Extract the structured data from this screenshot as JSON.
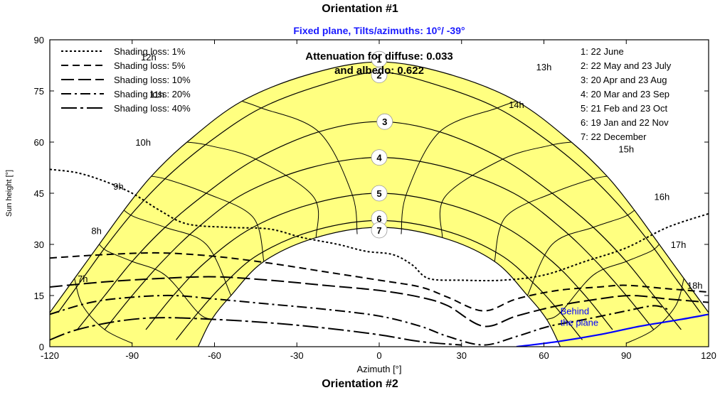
{
  "header": {
    "title": "Orientation #1"
  },
  "footer": {
    "title": "Orientation #2"
  },
  "chart_data": {
    "type": "line",
    "title": "Fixed plane, Tilts/azimuths: 10°/ -39°",
    "xlabel": "Azimuth [°]",
    "ylabel": "Sun height [°]",
    "xlim": [
      -120,
      120
    ],
    "ylim": [
      0,
      90
    ],
    "x_ticks": [
      "-120",
      "-90",
      "-60",
      "-30",
      "0",
      "30",
      "60",
      "90",
      "120"
    ],
    "y_ticks": [
      "0",
      "15",
      "30",
      "45",
      "60",
      "75",
      "90"
    ],
    "annotation": {
      "line1": "Attenuation for diffuse: 0.033",
      "line2": "and albedo: 0.622"
    },
    "behind_plane_label": "Behind\nthe plane",
    "colors": {
      "sun_band": "#ffff80",
      "behind_plane": "#0000ff",
      "title": "#1a1aff"
    },
    "shading_legend": [
      {
        "label": "Shading loss: 1%",
        "dash": "3,3"
      },
      {
        "label": "Shading loss: 5%",
        "dash": "10,6"
      },
      {
        "label": "Shading loss: 10%",
        "dash": "18,6"
      },
      {
        "label": "Shading loss: 20%",
        "dash": "14,5,3,5"
      },
      {
        "label": "Shading loss: 40%",
        "dash": "22,5,4,5"
      }
    ],
    "date_legend": [
      "1: 22 June",
      "2: 22 May and 23 July",
      "3: 20 Apr and 23 Aug",
      "4: 20 Mar and 23 Sep",
      "5: 21 Feb and 23 Oct",
      "6: 19 Jan and 22 Nov",
      "7: 22 December"
    ],
    "sun_paths": [
      {
        "id": "1",
        "points": [
          [
            -120,
            10
          ],
          [
            -111,
            20
          ],
          [
            -102,
            30
          ],
          [
            -93,
            40
          ],
          [
            -83,
            50
          ],
          [
            -70,
            60
          ],
          [
            -50,
            72
          ],
          [
            -25,
            80
          ],
          [
            0,
            83.5
          ],
          [
            25,
            80
          ],
          [
            50,
            72
          ],
          [
            70,
            60
          ],
          [
            83,
            50
          ],
          [
            93,
            40
          ],
          [
            102,
            30
          ],
          [
            111,
            20
          ],
          [
            120,
            10
          ]
        ]
      },
      {
        "id": "2",
        "points": [
          [
            -117,
            10
          ],
          [
            -108,
            20
          ],
          [
            -99,
            30
          ],
          [
            -89,
            40
          ],
          [
            -77,
            50
          ],
          [
            -62,
            60
          ],
          [
            -43,
            70
          ],
          [
            -20,
            77
          ],
          [
            0,
            80.5
          ],
          [
            20,
            77
          ],
          [
            43,
            70
          ],
          [
            62,
            60
          ],
          [
            77,
            50
          ],
          [
            89,
            40
          ],
          [
            99,
            30
          ],
          [
            108,
            20
          ],
          [
            117,
            10
          ]
        ]
      },
      {
        "id": "3",
        "points": [
          [
            -110,
            5
          ],
          [
            -100,
            15
          ],
          [
            -90,
            25
          ],
          [
            -78,
            35
          ],
          [
            -63,
            45
          ],
          [
            -45,
            55
          ],
          [
            -22,
            63
          ],
          [
            0,
            66
          ],
          [
            22,
            63
          ],
          [
            45,
            55
          ],
          [
            63,
            45
          ],
          [
            78,
            35
          ],
          [
            90,
            25
          ],
          [
            100,
            15
          ],
          [
            110,
            5
          ]
        ]
      },
      {
        "id": "4",
        "points": [
          [
            -100,
            5
          ],
          [
            -90,
            15
          ],
          [
            -79,
            25
          ],
          [
            -66,
            35
          ],
          [
            -49,
            45
          ],
          [
            -25,
            52.5
          ],
          [
            0,
            55.5
          ],
          [
            25,
            52.5
          ],
          [
            49,
            45
          ],
          [
            66,
            35
          ],
          [
            79,
            25
          ],
          [
            90,
            15
          ],
          [
            100,
            5
          ]
        ]
      },
      {
        "id": "5",
        "points": [
          [
            -85,
            5
          ],
          [
            -75,
            15
          ],
          [
            -63,
            25
          ],
          [
            -46,
            35
          ],
          [
            -24,
            42
          ],
          [
            0,
            45
          ],
          [
            24,
            42
          ],
          [
            46,
            35
          ],
          [
            63,
            25
          ],
          [
            75,
            15
          ],
          [
            85,
            5
          ]
        ]
      },
      {
        "id": "6",
        "points": [
          [
            -74,
            2
          ],
          [
            -66,
            10
          ],
          [
            -57,
            18
          ],
          [
            -44,
            27
          ],
          [
            -24,
            34
          ],
          [
            0,
            37
          ],
          [
            24,
            34
          ],
          [
            44,
            27
          ],
          [
            57,
            18
          ],
          [
            66,
            10
          ],
          [
            74,
            2
          ]
        ]
      },
      {
        "id": "7",
        "points": [
          [
            -66,
            0
          ],
          [
            -61,
            8
          ],
          [
            -54,
            15
          ],
          [
            -42,
            25
          ],
          [
            -23,
            32
          ],
          [
            0,
            35
          ],
          [
            23,
            32
          ],
          [
            42,
            25
          ],
          [
            54,
            15
          ],
          [
            61,
            8
          ],
          [
            66,
            0
          ]
        ]
      }
    ],
    "hour_labels": [
      {
        "label": "7h",
        "x": -108,
        "y": 19
      },
      {
        "label": "8h",
        "x": -103,
        "y": 33
      },
      {
        "label": "9h",
        "x": -95,
        "y": 46
      },
      {
        "label": "10h",
        "x": -86,
        "y": 59
      },
      {
        "label": "11h",
        "x": -81,
        "y": 73
      },
      {
        "label": "12h",
        "x": -84,
        "y": 84
      },
      {
        "label": "13h",
        "x": 60,
        "y": 81
      },
      {
        "label": "14h",
        "x": 50,
        "y": 70
      },
      {
        "label": "15h",
        "x": 90,
        "y": 57
      },
      {
        "label": "16h",
        "x": 103,
        "y": 43
      },
      {
        "label": "17h",
        "x": 109,
        "y": 29
      },
      {
        "label": "18h",
        "x": 115,
        "y": 17
      }
    ],
    "shading_curves": [
      {
        "loss": "1%",
        "points": [
          [
            -120,
            52
          ],
          [
            -110,
            51
          ],
          [
            -100,
            48.5
          ],
          [
            -90,
            45
          ],
          [
            -80,
            40
          ],
          [
            -70,
            36
          ],
          [
            -55,
            35
          ],
          [
            -40,
            34.5
          ],
          [
            -28,
            32
          ],
          [
            -15,
            30
          ],
          [
            -5,
            28
          ],
          [
            5,
            27
          ],
          [
            12,
            24
          ],
          [
            18,
            20
          ],
          [
            30,
            19.5
          ],
          [
            45,
            19.5
          ],
          [
            60,
            21
          ],
          [
            75,
            25
          ],
          [
            90,
            29
          ],
          [
            105,
            35
          ],
          [
            120,
            39
          ]
        ]
      },
      {
        "loss": "5%",
        "points": [
          [
            -120,
            26
          ],
          [
            -100,
            27
          ],
          [
            -80,
            27.5
          ],
          [
            -60,
            26.5
          ],
          [
            -40,
            24.5
          ],
          [
            -20,
            22
          ],
          [
            0,
            19.5
          ],
          [
            15,
            17.5
          ],
          [
            25,
            14.5
          ],
          [
            38,
            10.5
          ],
          [
            50,
            14
          ],
          [
            65,
            16.5
          ],
          [
            80,
            17.5
          ],
          [
            90,
            18
          ],
          [
            105,
            17
          ],
          [
            120,
            16
          ]
        ]
      },
      {
        "loss": "10%",
        "points": [
          [
            -120,
            17.5
          ],
          [
            -100,
            19
          ],
          [
            -80,
            20
          ],
          [
            -60,
            20.5
          ],
          [
            -40,
            19.5
          ],
          [
            -20,
            18
          ],
          [
            0,
            16.5
          ],
          [
            15,
            14.5
          ],
          [
            25,
            12
          ],
          [
            38,
            6
          ],
          [
            50,
            9
          ],
          [
            65,
            12
          ],
          [
            80,
            14
          ],
          [
            92,
            15
          ],
          [
            105,
            14
          ],
          [
            120,
            13
          ]
        ]
      },
      {
        "loss": "20%",
        "points": [
          [
            -120,
            9.5
          ],
          [
            -105,
            13
          ],
          [
            -90,
            14.5
          ],
          [
            -75,
            15
          ],
          [
            -60,
            14
          ],
          [
            -40,
            12.5
          ],
          [
            -20,
            11
          ],
          [
            0,
            9
          ],
          [
            15,
            6
          ],
          [
            25,
            3
          ],
          [
            38,
            0.5
          ],
          [
            50,
            3
          ],
          [
            62,
            6
          ],
          [
            75,
            8
          ],
          [
            90,
            10.5
          ],
          [
            100,
            12
          ],
          [
            105,
            11
          ]
        ]
      },
      {
        "loss": "40%",
        "points": [
          [
            -120,
            2
          ],
          [
            -110,
            5
          ],
          [
            -95,
            7.5
          ],
          [
            -80,
            8.5
          ],
          [
            -60,
            8
          ],
          [
            -40,
            7
          ],
          [
            -20,
            5.5
          ],
          [
            0,
            3.5
          ],
          [
            15,
            1.5
          ],
          [
            30,
            0.5
          ]
        ]
      }
    ],
    "behind_plane_curve": [
      [
        50,
        0
      ],
      [
        65,
        1.5
      ],
      [
        80,
        3.5
      ],
      [
        95,
        6
      ],
      [
        110,
        8
      ],
      [
        120,
        9.5
      ]
    ]
  }
}
